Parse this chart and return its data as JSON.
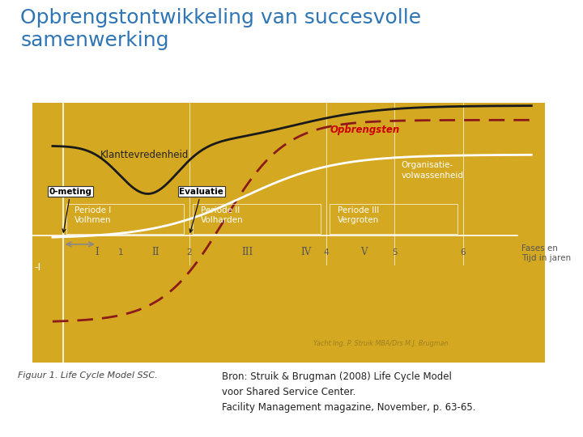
{
  "title": "Opbrengstontwikkeling van succesvolle\nsamenwerking",
  "title_color": "#2E75B6",
  "chart_bg": "#D4A820",
  "caption_left": "Figuur 1. Life Cycle Model SSC.",
  "caption_right": "Bron: Struik & Brugman (2008) Life Cycle Model\nvoor Shared Service Center.\nFacility Management magazine, November, p. 63-65.",
  "xlabel": "Fases en\nTijd in jaren",
  "label_opbrengsten": "Opbrengsten",
  "label_klanttevredenheid": "Klanttevredenheid",
  "label_organisatie": "Organisatie-\nvolwassenheid",
  "label_periode1": "Periode I\nVolhmen",
  "label_periode2": "Periode II\nVolharden",
  "label_periode3": "Periode III\nVergroten",
  "label_0meting": "0-meting",
  "label_evaluatie": "Evaluatie",
  "watermark": "Yacht Ing. P. Struik MBA/Drs M.J. Brugman"
}
